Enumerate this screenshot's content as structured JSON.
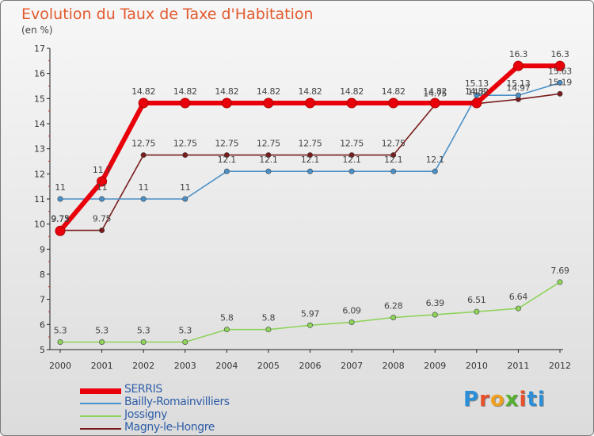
{
  "header": {
    "title": "Evolution du Taux de Taxe d'Habitation",
    "unit": "(en %)"
  },
  "logo": {
    "letters": [
      "P",
      "r",
      "o",
      "x",
      "i",
      "t",
      "i"
    ]
  },
  "chart_data": {
    "type": "line",
    "title": "Evolution du Taux de Taxe d'Habitation",
    "ylabel": "(en %)",
    "xlabel": "",
    "x": [
      "2000",
      "2001",
      "2002",
      "2003",
      "2004",
      "2005",
      "2006",
      "2007",
      "2008",
      "2009",
      "2010",
      "2011",
      "2012"
    ],
    "ylim": [
      5,
      17
    ],
    "yticks": [
      "5",
      "6",
      "7",
      "8",
      "9",
      "10",
      "11",
      "12",
      "13",
      "14",
      "15",
      "16",
      "17"
    ],
    "grid": false,
    "legend_position": "bottom-left",
    "series": [
      {
        "name": "SERRIS",
        "color": "#e8000b",
        "values": [
          9.73,
          11.7,
          14.82,
          14.82,
          14.82,
          14.82,
          14.82,
          14.82,
          14.82,
          14.82,
          14.82,
          16.3,
          16.3
        ],
        "labels": [
          "9.73",
          "11.7",
          "14.82",
          "14.82",
          "14.82",
          "14.82",
          "14.82",
          "14.82",
          "14.82",
          "14.82",
          "14.82",
          "16.3",
          "16.3"
        ]
      },
      {
        "name": "Bailly-Romainvilliers",
        "color": "#4a90c8",
        "values": [
          11,
          11,
          11,
          11,
          12.1,
          12.1,
          12.1,
          12.1,
          12.1,
          12.1,
          15.13,
          15.13,
          15.63
        ],
        "labels": [
          "11",
          "11",
          "11",
          "11",
          "12.1",
          "12.1",
          "12.1",
          "12.1",
          "12.1",
          "12.1",
          "15.13",
          "15.13",
          "15.63"
        ]
      },
      {
        "name": "Jossigny",
        "color": "#8ed35a",
        "values": [
          5.3,
          5.3,
          5.3,
          5.3,
          5.8,
          5.8,
          5.97,
          6.09,
          6.28,
          6.39,
          6.51,
          6.64,
          7.69
        ],
        "labels": [
          "5.3",
          "5.3",
          "5.3",
          "5.3",
          "5.8",
          "5.8",
          "5.97",
          "6.09",
          "6.28",
          "6.39",
          "6.51",
          "6.64",
          "7.69"
        ]
      },
      {
        "name": "Magny-le-Hongre",
        "color": "#7a1c1c",
        "values": [
          9.75,
          9.75,
          12.75,
          12.75,
          12.75,
          12.75,
          12.75,
          12.75,
          12.75,
          14.75,
          14.8,
          14.97,
          15.19
        ],
        "labels": [
          "9.75",
          "9.75",
          "12.75",
          "12.75",
          "12.75",
          "12.75",
          "12.75",
          "12.75",
          "12.75",
          "14.75",
          "14.8",
          "14.97",
          "15.19"
        ]
      }
    ]
  }
}
